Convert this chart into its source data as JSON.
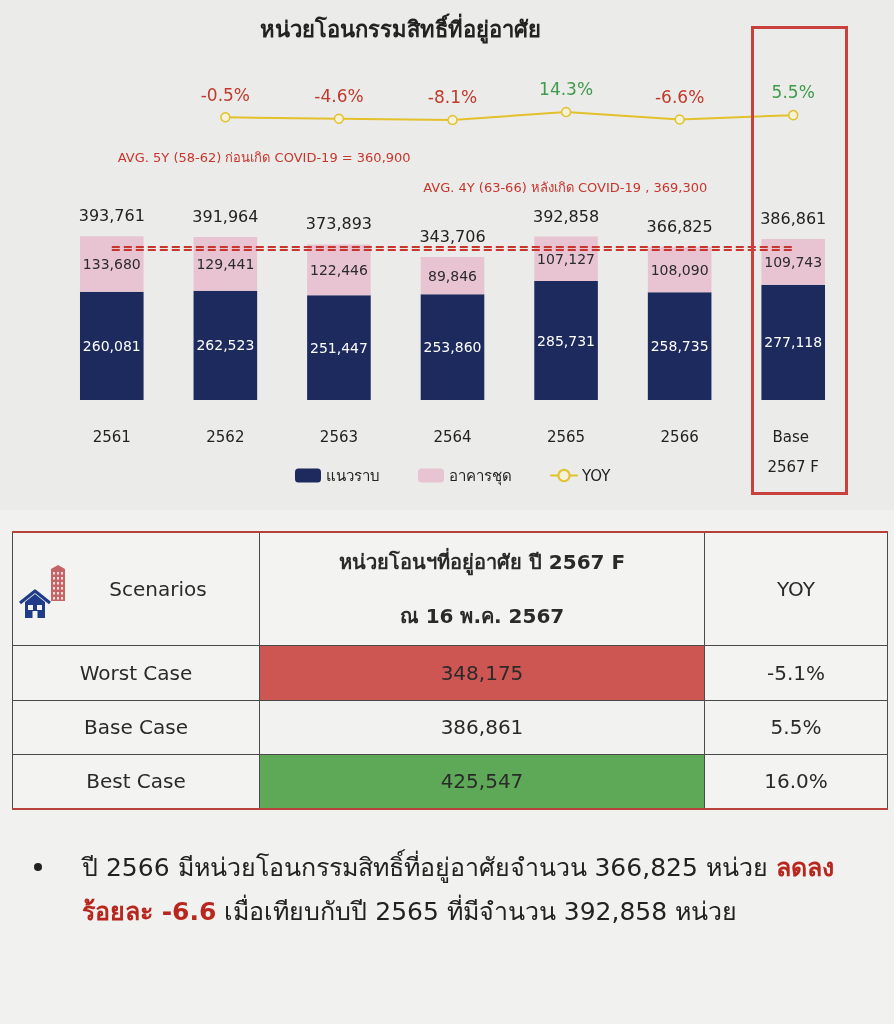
{
  "chart_data": [
    {
      "type": "line",
      "title": "หน่วยโอนกรรมสิทธิ์ที่อยู่อาศัย",
      "categories": [
        "2561",
        "2562",
        "2563",
        "2564",
        "2565",
        "2566",
        "Base 2567 F"
      ],
      "series": [
        {
          "name": "YOY",
          "color": "#e2c12c",
          "values": [
            null,
            -0.5,
            -4.6,
            -8.1,
            14.3,
            -6.6,
            5.5
          ],
          "value_labels": [
            null,
            "-0.5%",
            "-4.6%",
            "-8.1%",
            "14.3%",
            "-6.6%",
            "5.5%"
          ]
        }
      ],
      "marker": "circle",
      "line_style": "solid",
      "legend": "bottom",
      "tick_labels": false
    },
    {
      "type": "bar",
      "categories": [
        "2561",
        "2562",
        "2563",
        "2564",
        "2565",
        "2566",
        "Base 2567 F"
      ],
      "stacked": true,
      "series": [
        {
          "name": "แนวราบ",
          "color": "#1d2a5e",
          "values": [
            260081,
            262523,
            251447,
            253860,
            285731,
            258735,
            277118
          ],
          "value_labels": [
            "260,081",
            "262,523",
            "251,447",
            "253,860",
            "285,731",
            "258,735",
            "277,118"
          ]
        },
        {
          "name": "อาคารชุด",
          "color": "#e8c4d3",
          "values": [
            133680,
            129441,
            122446,
            89846,
            107127,
            108090,
            109743
          ],
          "value_labels": [
            "133,680",
            "129,441",
            "122,446",
            "89,846",
            "107,127",
            "108,090",
            "109,743"
          ]
        }
      ],
      "totals": [
        "393,761",
        "391,964",
        "373,893",
        "343,706",
        "392,858",
        "366,825",
        "386,861"
      ],
      "ref_lines": [
        {
          "axis": "y",
          "value": 360900,
          "label": "AVG. 5Y (58-62) ก่อนเกิด COVID-19 = 360,900",
          "color": "#c8352d",
          "line_style": "dashed"
        },
        {
          "axis": "y",
          "value": 369300,
          "label": "AVG. 4Y (63-66) หลังเกิด COVID-19 , 369,300",
          "color": "#c8352d",
          "line_style": "dashed"
        }
      ],
      "legend": "bottom",
      "grid": false,
      "tick_labels": "x"
    },
    {
      "type": "other",
      "ylabel": "Scenarios",
      "categories": [
        "Worst Case",
        "Base Case",
        "Best Case"
      ],
      "series": [
        {
          "name": "หน่วยโอนฯที่อยู่อาศัย ปี 2567 F\nณ 16 พ.ค. 2567",
          "values": [
            348175,
            386861,
            425547
          ],
          "value_labels": [
            "348,175",
            "386,861",
            "425,547"
          ],
          "colors": [
            "#cd5653",
            "#f2f2f0",
            "#5ea958"
          ]
        },
        {
          "name": "YOY",
          "values": [
            -5.1,
            5.5,
            16.0
          ],
          "value_labels": [
            "-5.1%",
            "5.5%",
            "16.0%"
          ]
        }
      ]
    },
    {
      "type": "other",
      "annotations": [
        "ปี 2566 มีหน่วยโอนกรรมสิทธิ์ที่อยู่อาศัยจำนวน 366,825 หน่วย",
        "ลดลง",
        "ร้อยละ -6.6",
        "เมื่อเทียบกับปี 2565 ที่มีจำนวน 392,858 หน่วย"
      ]
    }
  ]
}
